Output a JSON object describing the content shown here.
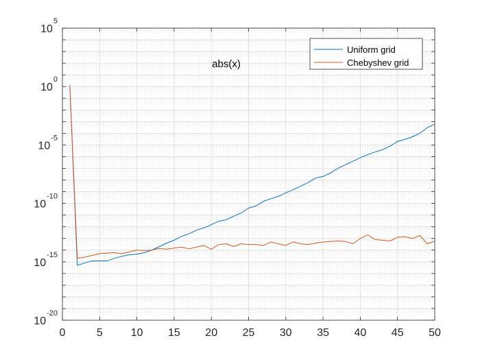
{
  "chart_data": {
    "type": "line",
    "title": "",
    "xlabel": "",
    "ylabel": "",
    "xlim": [
      0,
      50
    ],
    "ylim": [
      1e-20,
      100000.0
    ],
    "yscale": "log",
    "grid": true,
    "minor_grid": true,
    "legend_location": "top-right",
    "annotation": "abs(x)",
    "x_ticks": [
      "0",
      "5",
      "10",
      "15",
      "20",
      "25",
      "30",
      "35",
      "40",
      "45",
      "50"
    ],
    "y_ticks": [
      {
        "base": "10",
        "exp": "-20"
      },
      {
        "base": "10",
        "exp": "-15"
      },
      {
        "base": "10",
        "exp": "-10"
      },
      {
        "base": "10",
        "exp": "-5"
      },
      {
        "base": "10",
        "exp": "0"
      },
      {
        "base": "10",
        "exp": "5"
      }
    ],
    "series": [
      {
        "name": "Uniform grid",
        "color": "#0072BD",
        "x": [
          1,
          2,
          3,
          4,
          5,
          6,
          7,
          8,
          9,
          10,
          11,
          12,
          13,
          14,
          15,
          16,
          17,
          18,
          19,
          20,
          21,
          22,
          23,
          24,
          25,
          26,
          27,
          28,
          29,
          30,
          31,
          32,
          33,
          34,
          35,
          36,
          37,
          38,
          39,
          40,
          41,
          42,
          43,
          44,
          45,
          46,
          47,
          48,
          49,
          50
        ],
        "y": [
          1.3,
          5e-16,
          8e-16,
          1.2e-15,
          1.2e-15,
          1.2e-15,
          2e-15,
          3e-15,
          4e-15,
          4.5e-15,
          6e-15,
          1e-14,
          2e-14,
          4e-14,
          7e-14,
          1.5e-13,
          2.5e-13,
          5e-13,
          8e-13,
          1.5e-12,
          3e-12,
          4e-12,
          8e-12,
          1.5e-11,
          4e-11,
          6e-11,
          1.5e-10,
          2.5e-10,
          4e-10,
          8e-10,
          1.5e-09,
          3e-09,
          6e-09,
          1.5e-08,
          2e-08,
          4e-08,
          1e-07,
          2e-07,
          4e-07,
          8e-07,
          1.5e-06,
          2.5e-06,
          4e-06,
          8e-06,
          2e-05,
          3e-05,
          5e-05,
          0.0001,
          0.0003,
          0.0006
        ]
      },
      {
        "name": "Chebyshev grid",
        "color": "#D95319",
        "x": [
          1,
          2,
          3,
          4,
          5,
          6,
          7,
          8,
          9,
          10,
          11,
          12,
          13,
          14,
          15,
          16,
          17,
          18,
          19,
          20,
          21,
          22,
          23,
          24,
          25,
          26,
          27,
          28,
          29,
          30,
          31,
          32,
          33,
          34,
          35,
          36,
          37,
          38,
          39,
          40,
          41,
          42,
          43,
          44,
          45,
          46,
          47,
          48,
          49,
          50
        ],
        "y": [
          1.3,
          2e-15,
          2.5e-15,
          3.5e-15,
          5e-15,
          5.5e-15,
          6e-15,
          5e-15,
          7e-15,
          1e-14,
          9e-15,
          1e-14,
          1.4e-14,
          1.2e-14,
          1.5e-14,
          1.8e-14,
          1.3e-14,
          1.8e-14,
          2.5e-14,
          1.2e-14,
          3e-14,
          3.5e-14,
          2e-14,
          3.5e-14,
          3e-14,
          3e-14,
          2.5e-14,
          5e-14,
          3.5e-14,
          2.5e-14,
          5e-14,
          3.5e-14,
          3e-14,
          4e-14,
          5e-14,
          5.5e-14,
          6e-14,
          5.5e-14,
          3.5e-14,
          1e-13,
          2e-13,
          8e-14,
          7e-14,
          6e-14,
          1.3e-13,
          1.4e-13,
          1e-13,
          1.8e-13,
          3.5e-14,
          6e-14
        ]
      }
    ]
  }
}
